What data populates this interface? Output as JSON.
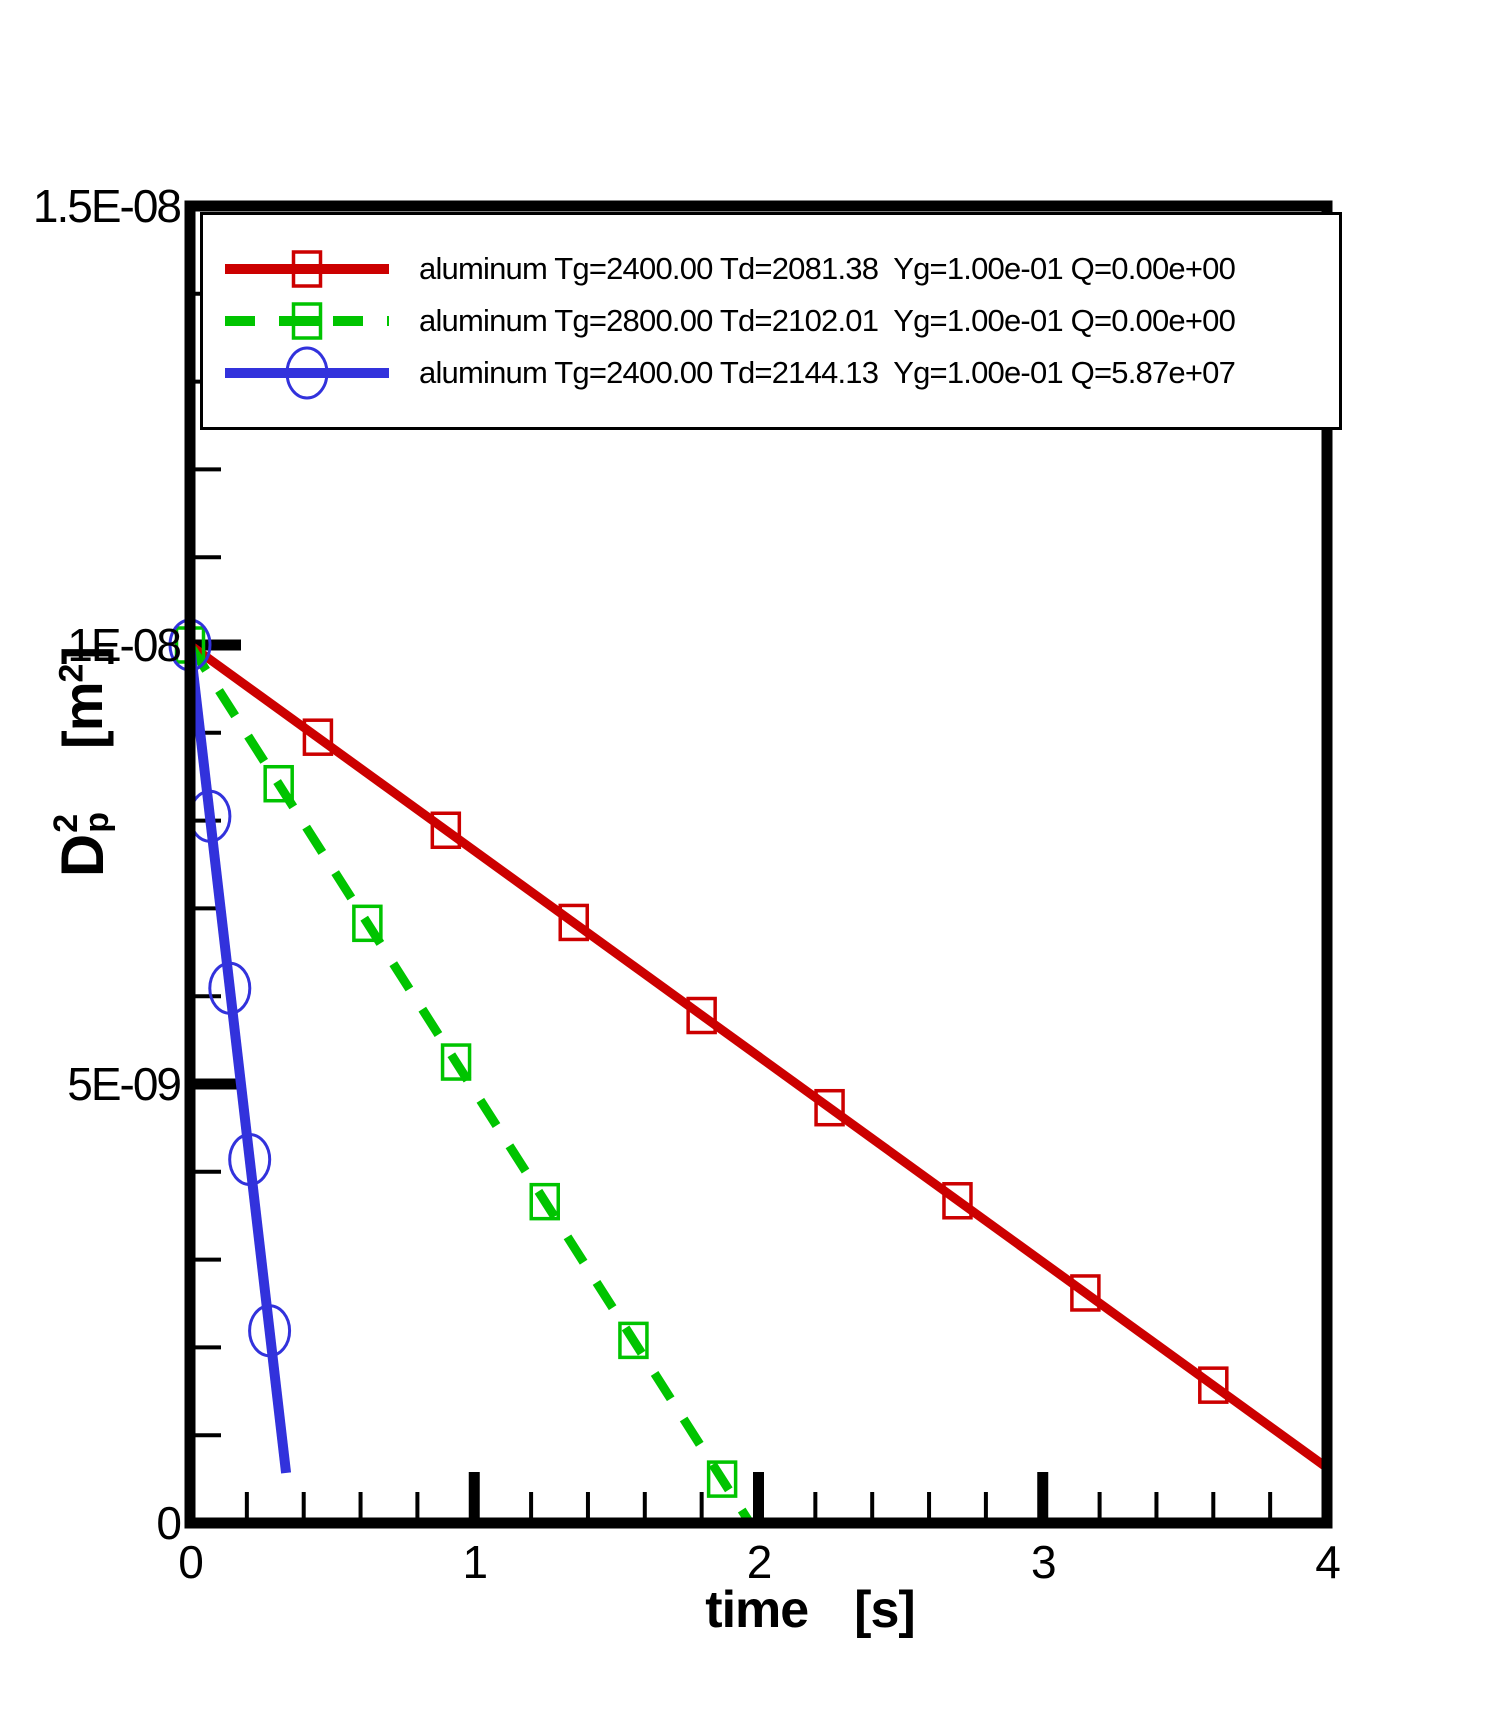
{
  "figure": {
    "x_axis": {
      "title_word": "time",
      "title_unit": "[s]"
    },
    "y_axis": {
      "title_main": "D",
      "title_sup": "2",
      "title_sub": "p",
      "unit_pre": "[m",
      "unit_sup": "2",
      "unit_post": "]"
    }
  },
  "chart_data": {
    "type": "line",
    "title": "",
    "xlabel": "time [s]",
    "ylabel": "Dp^2 [m^2]",
    "xlim": [
      0,
      4
    ],
    "ylim": [
      0,
      1.5e-08
    ],
    "grid": false,
    "legend_position": "top-inside",
    "frame_color": "#000000",
    "background": "#ffffff",
    "x_tick_values": [
      0,
      1,
      2,
      3,
      4
    ],
    "x_tick_labels": [
      "0",
      "1",
      "2",
      "3",
      "4"
    ],
    "x_minor_step": 0.2,
    "y_tick_values": [
      0,
      5e-09,
      1e-08,
      1.5e-08
    ],
    "y_tick_labels": [
      "0",
      "5E-09",
      "1E-08",
      "1.5E-08"
    ],
    "y_minor_step": 1e-09,
    "series": [
      {
        "name": "aluminum Tg=2400.00 Td=2081.38  Yg=1.00e-01 Q=0.00e+00",
        "color": "#cc0000",
        "line_style": "solid",
        "line_width": 9,
        "marker": "square",
        "line": [
          [
            0,
            1e-08
          ],
          [
            4.0,
            6.3e-10
          ]
        ],
        "marker_points": [
          [
            0.45,
            8.95e-09
          ],
          [
            0.9,
            7.89e-09
          ],
          [
            1.35,
            6.84e-09
          ],
          [
            1.8,
            5.78e-09
          ],
          [
            2.25,
            4.73e-09
          ],
          [
            2.7,
            3.67e-09
          ],
          [
            3.15,
            2.62e-09
          ],
          [
            3.6,
            1.57e-09
          ]
        ]
      },
      {
        "name": "aluminum Tg=2800.00 Td=2102.01  Yg=1.00e-01 Q=0.00e+00",
        "color": "#00c400",
        "line_style": "dashed",
        "line_width": 9,
        "marker": "square",
        "line": [
          [
            0,
            1e-08
          ],
          [
            1.97,
            0
          ]
        ],
        "marker_points": [
          [
            0,
            1e-08
          ],
          [
            0.312,
            8.42e-09
          ],
          [
            0.624,
            6.83e-09
          ],
          [
            0.936,
            5.25e-09
          ],
          [
            1.248,
            3.66e-09
          ],
          [
            1.56,
            2.08e-09
          ],
          [
            1.872,
            5e-10
          ]
        ]
      },
      {
        "name": "aluminum Tg=2400.00 Td=2144.13  Yg=1.00e-01 Q=5.87e+07",
        "color": "#3232dc",
        "line_style": "solid",
        "line_width": 10,
        "marker": "circle",
        "line": [
          [
            0,
            1e-08
          ],
          [
            0.338,
            5.7e-10
          ]
        ],
        "marker_points": [
          [
            0,
            1e-08
          ],
          [
            0.07,
            8.05e-09
          ],
          [
            0.14,
            6.09e-09
          ],
          [
            0.21,
            4.14e-09
          ],
          [
            0.28,
            2.19e-09
          ]
        ]
      }
    ]
  }
}
